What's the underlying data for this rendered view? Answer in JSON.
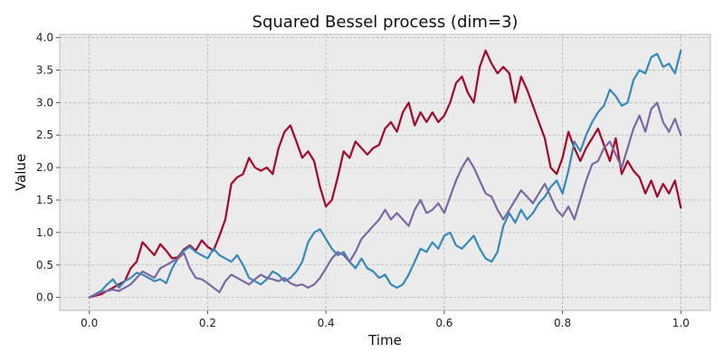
{
  "chart_data": {
    "type": "line",
    "title": "Squared Bessel process (dim=3)",
    "xlabel": "Time",
    "ylabel": "Value",
    "xlim": [
      -0.05,
      1.05
    ],
    "ylim": [
      -0.2,
      4.05
    ],
    "xticks": [
      0.0,
      0.2,
      0.4,
      0.6,
      0.8,
      1.0
    ],
    "xtick_labels": [
      "0.0",
      "0.2",
      "0.4",
      "0.6",
      "0.8",
      "1.0"
    ],
    "yticks": [
      0.0,
      0.5,
      1.0,
      1.5,
      2.0,
      2.5,
      3.0,
      3.5,
      4.0
    ],
    "ytick_labels": [
      "0.0",
      "0.5",
      "1.0",
      "1.5",
      "2.0",
      "2.5",
      "3.0",
      "3.5",
      "4.0"
    ],
    "grid": true,
    "background": "#ebebeb",
    "series": [
      {
        "color": "#a60628",
        "points": [
          [
            0.0,
            0.0
          ],
          [
            0.02,
            0.05
          ],
          [
            0.04,
            0.15
          ],
          [
            0.06,
            0.25
          ],
          [
            0.07,
            0.45
          ],
          [
            0.08,
            0.55
          ],
          [
            0.09,
            0.85
          ],
          [
            0.1,
            0.75
          ],
          [
            0.11,
            0.65
          ],
          [
            0.12,
            0.82
          ],
          [
            0.13,
            0.72
          ],
          [
            0.14,
            0.6
          ],
          [
            0.15,
            0.62
          ],
          [
            0.16,
            0.74
          ],
          [
            0.17,
            0.8
          ],
          [
            0.18,
            0.72
          ],
          [
            0.19,
            0.88
          ],
          [
            0.2,
            0.78
          ],
          [
            0.21,
            0.72
          ],
          [
            0.22,
            0.95
          ],
          [
            0.23,
            1.2
          ],
          [
            0.24,
            1.75
          ],
          [
            0.25,
            1.85
          ],
          [
            0.26,
            1.9
          ],
          [
            0.27,
            2.15
          ],
          [
            0.28,
            2.0
          ],
          [
            0.29,
            1.95
          ],
          [
            0.3,
            2.0
          ],
          [
            0.31,
            1.9
          ],
          [
            0.32,
            2.3
          ],
          [
            0.33,
            2.55
          ],
          [
            0.34,
            2.65
          ],
          [
            0.35,
            2.4
          ],
          [
            0.36,
            2.15
          ],
          [
            0.37,
            2.25
          ],
          [
            0.38,
            2.1
          ],
          [
            0.39,
            1.7
          ],
          [
            0.4,
            1.4
          ],
          [
            0.41,
            1.5
          ],
          [
            0.42,
            1.85
          ],
          [
            0.43,
            2.25
          ],
          [
            0.44,
            2.15
          ],
          [
            0.45,
            2.4
          ],
          [
            0.46,
            2.3
          ],
          [
            0.47,
            2.2
          ],
          [
            0.48,
            2.3
          ],
          [
            0.49,
            2.35
          ],
          [
            0.5,
            2.6
          ],
          [
            0.51,
            2.7
          ],
          [
            0.52,
            2.55
          ],
          [
            0.53,
            2.85
          ],
          [
            0.54,
            3.0
          ],
          [
            0.55,
            2.65
          ],
          [
            0.56,
            2.85
          ],
          [
            0.57,
            2.7
          ],
          [
            0.58,
            2.85
          ],
          [
            0.59,
            2.7
          ],
          [
            0.6,
            2.8
          ],
          [
            0.61,
            3.0
          ],
          [
            0.62,
            3.3
          ],
          [
            0.63,
            3.4
          ],
          [
            0.64,
            3.15
          ],
          [
            0.65,
            3.0
          ],
          [
            0.66,
            3.55
          ],
          [
            0.67,
            3.8
          ],
          [
            0.68,
            3.6
          ],
          [
            0.69,
            3.45
          ],
          [
            0.7,
            3.55
          ],
          [
            0.71,
            3.45
          ],
          [
            0.72,
            3.0
          ],
          [
            0.73,
            3.4
          ],
          [
            0.74,
            3.2
          ],
          [
            0.75,
            2.95
          ],
          [
            0.76,
            2.7
          ],
          [
            0.77,
            2.45
          ],
          [
            0.78,
            2.0
          ],
          [
            0.79,
            1.9
          ],
          [
            0.8,
            2.15
          ],
          [
            0.81,
            2.55
          ],
          [
            0.82,
            2.3
          ],
          [
            0.83,
            2.1
          ],
          [
            0.84,
            2.3
          ],
          [
            0.85,
            2.45
          ],
          [
            0.86,
            2.6
          ],
          [
            0.87,
            2.35
          ],
          [
            0.88,
            2.1
          ],
          [
            0.89,
            2.45
          ],
          [
            0.9,
            1.9
          ],
          [
            0.91,
            2.1
          ],
          [
            0.92,
            1.95
          ],
          [
            0.93,
            1.85
          ],
          [
            0.94,
            1.6
          ],
          [
            0.95,
            1.8
          ],
          [
            0.96,
            1.55
          ],
          [
            0.97,
            1.75
          ],
          [
            0.98,
            1.6
          ],
          [
            0.99,
            1.8
          ],
          [
            1.0,
            1.38
          ]
        ]
      },
      {
        "color": "#348abd",
        "points": [
          [
            0.0,
            0.0
          ],
          [
            0.01,
            0.05
          ],
          [
            0.02,
            0.1
          ],
          [
            0.03,
            0.2
          ],
          [
            0.04,
            0.28
          ],
          [
            0.05,
            0.15
          ],
          [
            0.06,
            0.25
          ],
          [
            0.07,
            0.3
          ],
          [
            0.08,
            0.38
          ],
          [
            0.09,
            0.35
          ],
          [
            0.1,
            0.3
          ],
          [
            0.11,
            0.25
          ],
          [
            0.12,
            0.28
          ],
          [
            0.13,
            0.22
          ],
          [
            0.14,
            0.45
          ],
          [
            0.15,
            0.6
          ],
          [
            0.16,
            0.72
          ],
          [
            0.17,
            0.78
          ],
          [
            0.18,
            0.7
          ],
          [
            0.19,
            0.65
          ],
          [
            0.2,
            0.6
          ],
          [
            0.21,
            0.75
          ],
          [
            0.22,
            0.65
          ],
          [
            0.23,
            0.6
          ],
          [
            0.24,
            0.55
          ],
          [
            0.25,
            0.65
          ],
          [
            0.26,
            0.5
          ],
          [
            0.27,
            0.3
          ],
          [
            0.28,
            0.25
          ],
          [
            0.29,
            0.2
          ],
          [
            0.3,
            0.28
          ],
          [
            0.31,
            0.4
          ],
          [
            0.32,
            0.35
          ],
          [
            0.33,
            0.25
          ],
          [
            0.34,
            0.3
          ],
          [
            0.35,
            0.4
          ],
          [
            0.36,
            0.55
          ],
          [
            0.37,
            0.85
          ],
          [
            0.38,
            1.0
          ],
          [
            0.39,
            1.05
          ],
          [
            0.4,
            0.9
          ],
          [
            0.41,
            0.75
          ],
          [
            0.42,
            0.65
          ],
          [
            0.43,
            0.7
          ],
          [
            0.44,
            0.55
          ],
          [
            0.45,
            0.45
          ],
          [
            0.46,
            0.6
          ],
          [
            0.47,
            0.45
          ],
          [
            0.48,
            0.4
          ],
          [
            0.49,
            0.3
          ],
          [
            0.5,
            0.35
          ],
          [
            0.51,
            0.2
          ],
          [
            0.52,
            0.15
          ],
          [
            0.53,
            0.2
          ],
          [
            0.54,
            0.35
          ],
          [
            0.55,
            0.55
          ],
          [
            0.56,
            0.75
          ],
          [
            0.57,
            0.7
          ],
          [
            0.58,
            0.85
          ],
          [
            0.59,
            0.75
          ],
          [
            0.6,
            0.95
          ],
          [
            0.61,
            1.0
          ],
          [
            0.62,
            0.8
          ],
          [
            0.63,
            0.75
          ],
          [
            0.64,
            0.85
          ],
          [
            0.65,
            0.95
          ],
          [
            0.66,
            0.75
          ],
          [
            0.67,
            0.6
          ],
          [
            0.68,
            0.55
          ],
          [
            0.69,
            0.7
          ],
          [
            0.7,
            1.1
          ],
          [
            0.71,
            1.3
          ],
          [
            0.72,
            1.15
          ],
          [
            0.73,
            1.35
          ],
          [
            0.74,
            1.2
          ],
          [
            0.75,
            1.3
          ],
          [
            0.76,
            1.45
          ],
          [
            0.77,
            1.55
          ],
          [
            0.78,
            1.7
          ],
          [
            0.79,
            1.8
          ],
          [
            0.8,
            1.6
          ],
          [
            0.81,
            1.95
          ],
          [
            0.82,
            2.4
          ],
          [
            0.83,
            2.25
          ],
          [
            0.84,
            2.5
          ],
          [
            0.85,
            2.7
          ],
          [
            0.86,
            2.85
          ],
          [
            0.87,
            2.95
          ],
          [
            0.88,
            3.2
          ],
          [
            0.89,
            3.1
          ],
          [
            0.9,
            2.95
          ],
          [
            0.91,
            3.0
          ],
          [
            0.92,
            3.35
          ],
          [
            0.93,
            3.5
          ],
          [
            0.94,
            3.45
          ],
          [
            0.95,
            3.7
          ],
          [
            0.96,
            3.75
          ],
          [
            0.97,
            3.55
          ],
          [
            0.98,
            3.6
          ],
          [
            0.99,
            3.45
          ],
          [
            1.0,
            3.8
          ]
        ]
      },
      {
        "color": "#7a68a6",
        "points": [
          [
            0.0,
            0.0
          ],
          [
            0.02,
            0.08
          ],
          [
            0.04,
            0.12
          ],
          [
            0.05,
            0.1
          ],
          [
            0.06,
            0.15
          ],
          [
            0.07,
            0.2
          ],
          [
            0.08,
            0.3
          ],
          [
            0.09,
            0.4
          ],
          [
            0.1,
            0.35
          ],
          [
            0.11,
            0.3
          ],
          [
            0.12,
            0.45
          ],
          [
            0.13,
            0.5
          ],
          [
            0.14,
            0.55
          ],
          [
            0.15,
            0.6
          ],
          [
            0.16,
            0.68
          ],
          [
            0.17,
            0.45
          ],
          [
            0.18,
            0.3
          ],
          [
            0.19,
            0.28
          ],
          [
            0.2,
            0.22
          ],
          [
            0.21,
            0.15
          ],
          [
            0.22,
            0.08
          ],
          [
            0.23,
            0.25
          ],
          [
            0.24,
            0.35
          ],
          [
            0.25,
            0.3
          ],
          [
            0.26,
            0.25
          ],
          [
            0.27,
            0.2
          ],
          [
            0.28,
            0.28
          ],
          [
            0.29,
            0.35
          ],
          [
            0.3,
            0.3
          ],
          [
            0.31,
            0.28
          ],
          [
            0.32,
            0.25
          ],
          [
            0.33,
            0.3
          ],
          [
            0.34,
            0.22
          ],
          [
            0.35,
            0.18
          ],
          [
            0.36,
            0.2
          ],
          [
            0.37,
            0.15
          ],
          [
            0.38,
            0.2
          ],
          [
            0.39,
            0.3
          ],
          [
            0.4,
            0.45
          ],
          [
            0.41,
            0.6
          ],
          [
            0.42,
            0.7
          ],
          [
            0.43,
            0.65
          ],
          [
            0.44,
            0.55
          ],
          [
            0.45,
            0.7
          ],
          [
            0.46,
            0.9
          ],
          [
            0.47,
            1.0
          ],
          [
            0.48,
            1.1
          ],
          [
            0.49,
            1.2
          ],
          [
            0.5,
            1.35
          ],
          [
            0.51,
            1.2
          ],
          [
            0.52,
            1.3
          ],
          [
            0.53,
            1.2
          ],
          [
            0.54,
            1.1
          ],
          [
            0.55,
            1.35
          ],
          [
            0.56,
            1.5
          ],
          [
            0.57,
            1.3
          ],
          [
            0.58,
            1.35
          ],
          [
            0.59,
            1.45
          ],
          [
            0.6,
            1.3
          ],
          [
            0.61,
            1.55
          ],
          [
            0.62,
            1.8
          ],
          [
            0.63,
            2.0
          ],
          [
            0.64,
            2.15
          ],
          [
            0.65,
            2.0
          ],
          [
            0.66,
            1.8
          ],
          [
            0.67,
            1.6
          ],
          [
            0.68,
            1.55
          ],
          [
            0.69,
            1.35
          ],
          [
            0.7,
            1.2
          ],
          [
            0.71,
            1.35
          ],
          [
            0.72,
            1.5
          ],
          [
            0.73,
            1.65
          ],
          [
            0.74,
            1.55
          ],
          [
            0.75,
            1.45
          ],
          [
            0.76,
            1.6
          ],
          [
            0.77,
            1.75
          ],
          [
            0.78,
            1.55
          ],
          [
            0.79,
            1.35
          ],
          [
            0.8,
            1.25
          ],
          [
            0.81,
            1.4
          ],
          [
            0.82,
            1.2
          ],
          [
            0.83,
            1.5
          ],
          [
            0.84,
            1.8
          ],
          [
            0.85,
            2.05
          ],
          [
            0.86,
            2.1
          ],
          [
            0.87,
            2.3
          ],
          [
            0.88,
            2.4
          ],
          [
            0.89,
            2.2
          ],
          [
            0.9,
            2.0
          ],
          [
            0.91,
            2.3
          ],
          [
            0.92,
            2.6
          ],
          [
            0.93,
            2.8
          ],
          [
            0.94,
            2.55
          ],
          [
            0.95,
            2.9
          ],
          [
            0.96,
            3.0
          ],
          [
            0.97,
            2.7
          ],
          [
            0.98,
            2.55
          ],
          [
            0.99,
            2.75
          ],
          [
            1.0,
            2.5
          ]
        ]
      }
    ]
  }
}
